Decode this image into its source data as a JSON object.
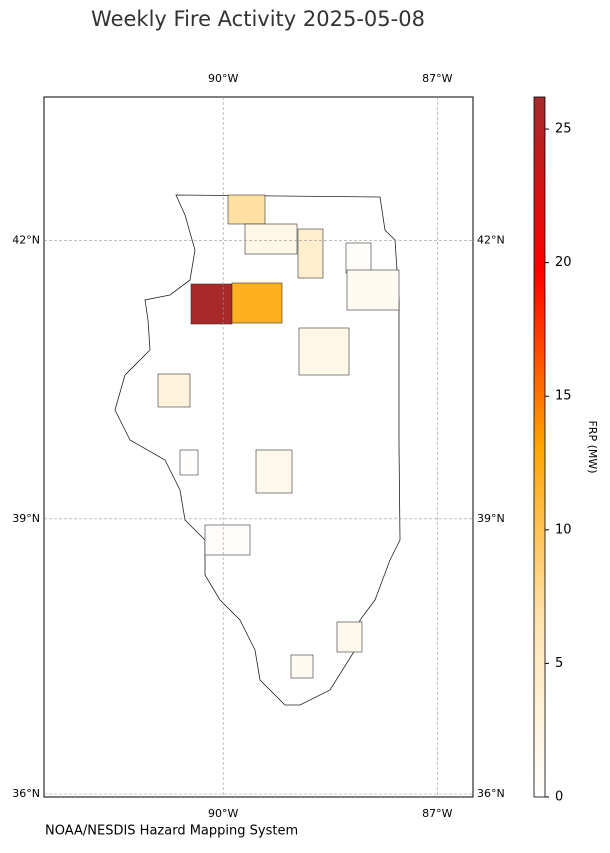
{
  "chart_data": {
    "type": "choropleth",
    "title": "Weekly Fire Activity 2025-05-08",
    "source": "NOAA/NESDIS Hazard Mapping System",
    "colorbar_label": "FRP (MW)",
    "clim": [
      0,
      26.2
    ],
    "cticks": [
      0,
      5,
      10,
      15,
      20,
      25
    ],
    "colormap": [
      "#ffffff",
      "#ffe4b0",
      "#ffa500",
      "#ff0000",
      "#a52a2a"
    ],
    "xlim": [
      -92.51,
      -86.5
    ],
    "ylim": [
      36,
      43.55
    ],
    "xticks": [
      {
        "value": -90,
        "label": "90°W"
      },
      {
        "value": -87,
        "label": "87°W"
      }
    ],
    "yticks": [
      {
        "value": 42,
        "label": "42°N"
      },
      {
        "value": 39,
        "label": "39°N"
      },
      {
        "value": 36,
        "label": "36°N"
      }
    ],
    "grid": true,
    "values": [
      7,
      2,
      4,
      0.3,
      1,
      26,
      12,
      1.8,
      3,
      0.2,
      1.5,
      0.5,
      1.5,
      1
    ]
  }
}
